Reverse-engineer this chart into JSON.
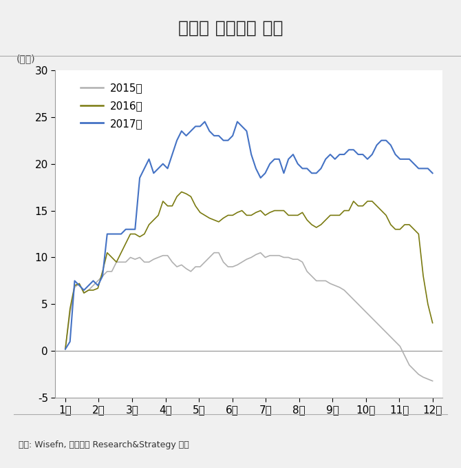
{
  "title": "연도별 대차잔고 추이",
  "ylabel": "(조원)",
  "source": "자료: Wisefn, 대신증권 Research&Strategy 본부",
  "background_color": "#f0f0f0",
  "plot_background": "#ffffff",
  "title_fontsize": 18,
  "ylim": [
    -5,
    30
  ],
  "yticks": [
    -5,
    0,
    5,
    10,
    15,
    20,
    25,
    30
  ],
  "xtick_labels": [
    "1월",
    "2월",
    "3월",
    "4월",
    "5월",
    "6월",
    "7월",
    "8월",
    "9월",
    "10월",
    "11월",
    "12월"
  ],
  "legend_labels": [
    "2015년",
    "2016년",
    "2017년"
  ],
  "line_colors": [
    "#b0b0b0",
    "#7a7a10",
    "#4472c4"
  ],
  "series_2015": [
    0.3,
    4.0,
    6.8,
    7.2,
    6.2,
    6.5,
    7.0,
    7.5,
    8.0,
    8.5,
    8.5,
    9.5,
    9.5,
    9.5,
    10.0,
    9.8,
    10.0,
    9.5,
    9.5,
    9.8,
    10.0,
    10.2,
    10.2,
    9.5,
    9.0,
    9.2,
    8.8,
    8.5,
    9.0,
    9.0,
    9.5,
    10.0,
    10.5,
    10.5,
    9.5,
    9.0,
    9.0,
    9.2,
    9.5,
    9.8,
    10.0,
    10.3,
    10.5,
    10.0,
    10.2,
    10.2,
    10.2,
    10.0,
    10.0,
    9.8,
    9.8,
    9.5,
    8.5,
    8.0,
    7.5,
    7.5,
    7.5,
    7.2,
    7.0,
    6.8,
    6.5,
    6.0,
    5.5,
    5.0,
    4.5,
    4.0,
    3.5,
    3.0,
    2.5,
    2.0,
    1.5,
    1.0,
    0.5,
    -0.5,
    -1.5,
    -2.0,
    -2.5,
    -2.8,
    -3.0,
    -3.2
  ],
  "series_2016": [
    0.2,
    4.5,
    7.0,
    7.2,
    6.2,
    6.5,
    6.5,
    6.7,
    8.5,
    10.5,
    10.0,
    9.5,
    10.5,
    11.5,
    12.5,
    12.5,
    12.2,
    12.5,
    13.5,
    14.0,
    14.5,
    16.0,
    15.5,
    15.5,
    16.5,
    17.0,
    16.8,
    16.5,
    15.5,
    14.8,
    14.5,
    14.2,
    14.0,
    13.8,
    14.2,
    14.5,
    14.5,
    14.8,
    15.0,
    14.5,
    14.5,
    14.8,
    15.0,
    14.5,
    14.8,
    15.0,
    15.0,
    15.0,
    14.5,
    14.5,
    14.5,
    14.8,
    14.0,
    13.5,
    13.2,
    13.5,
    14.0,
    14.5,
    14.5,
    14.5,
    15.0,
    15.0,
    16.0,
    15.5,
    15.5,
    16.0,
    16.0,
    15.5,
    15.0,
    14.5,
    13.5,
    13.0,
    13.0,
    13.5,
    13.5,
    13.0,
    12.5,
    8.0,
    5.0,
    3.0
  ],
  "series_2017": [
    0.2,
    1.0,
    7.5,
    7.0,
    6.5,
    7.0,
    7.5,
    7.0,
    8.0,
    12.5,
    12.5,
    12.5,
    12.5,
    13.0,
    13.0,
    13.0,
    18.5,
    19.5,
    20.5,
    19.0,
    19.5,
    20.0,
    19.5,
    21.0,
    22.5,
    23.5,
    23.0,
    23.5,
    24.0,
    24.0,
    24.5,
    23.5,
    23.0,
    23.0,
    22.5,
    22.5,
    23.0,
    24.5,
    24.0,
    23.5,
    21.0,
    19.5,
    18.5,
    19.0,
    20.0,
    20.5,
    20.5,
    19.0,
    20.5,
    21.0,
    20.0,
    19.5,
    19.5,
    19.0,
    19.0,
    19.5,
    20.5,
    21.0,
    20.5,
    21.0,
    21.0,
    21.5,
    21.5,
    21.0,
    21.0,
    20.5,
    21.0,
    22.0,
    22.5,
    22.5,
    22.0,
    21.0,
    20.5,
    20.5,
    20.5,
    20.0,
    19.5,
    19.5,
    19.5,
    19.0
  ]
}
